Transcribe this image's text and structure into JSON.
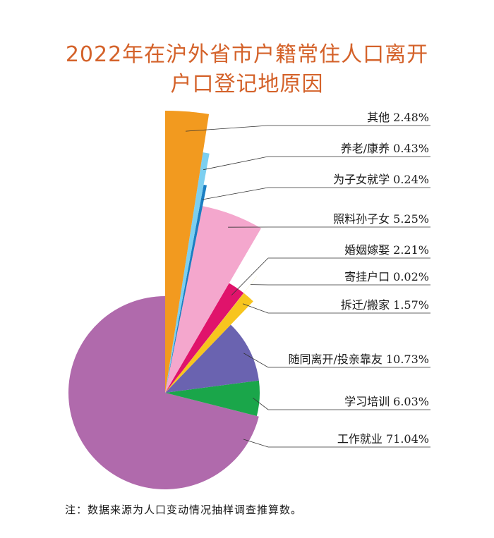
{
  "chart_data": {
    "type": "pie",
    "title_line1": "2022年在沪外省市户籍常住人口离开",
    "title_line2": "户口登记地原因",
    "slices": [
      {
        "label": "工作就业",
        "value": 71.04,
        "value_text": "71.04%",
        "color": "#b06aac"
      },
      {
        "label": "学习培训",
        "value": 6.03,
        "value_text": "6.03%",
        "color": "#1aa64a"
      },
      {
        "label": "随同离开/投亲靠友",
        "value": 10.73,
        "value_text": "10.73%",
        "color": "#6a63b0"
      },
      {
        "label": "拆迁/搬家",
        "value": 1.57,
        "value_text": "1.57%",
        "color": "#f7c51e"
      },
      {
        "label": "寄挂户口",
        "value": 0.02,
        "value_text": "0.02%",
        "color": "#f2f2a0"
      },
      {
        "label": "婚姻嫁娶",
        "value": 2.21,
        "value_text": "2.21%",
        "color": "#e0136b"
      },
      {
        "label": "照料孙子女",
        "value": 5.25,
        "value_text": "5.25%",
        "color": "#f4a7cd"
      },
      {
        "label": "为子女就学",
        "value": 0.24,
        "value_text": "0.24%",
        "color": "#1b7ec2"
      },
      {
        "label": "养老/康养",
        "value": 0.43,
        "value_text": "0.43%",
        "color": "#7ccff0"
      },
      {
        "label": "其他",
        "value": 2.48,
        "value_text": "2.48%",
        "color": "#f29a1f"
      }
    ],
    "note": "注：数据来源为人口变动情况抽样调查推算数。"
  }
}
